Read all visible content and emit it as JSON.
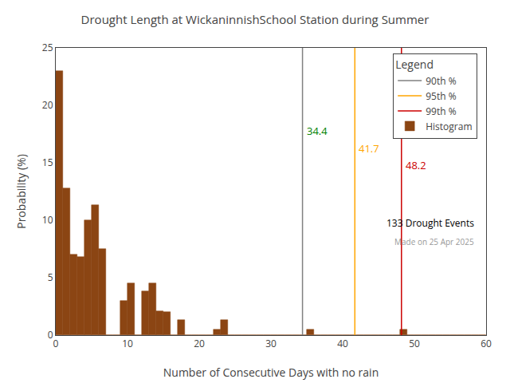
{
  "chart_data": {
    "type": "histogram",
    "title": "Drought Length at WickaninnishSchool Station during Summer",
    "xlabel": "Number of Consecutive Days with no rain",
    "ylabel": "Probability (%)",
    "series": [
      {
        "name": "Histogram",
        "type": "histogram",
        "color": "#8B4513",
        "bins": [
          0,
          1,
          2,
          3,
          4,
          5,
          6,
          7,
          8,
          9,
          10,
          11,
          12,
          13,
          14,
          15,
          16,
          17,
          18,
          19,
          20,
          21,
          22,
          23,
          24,
          25,
          26,
          27,
          28,
          29,
          30,
          31,
          32,
          33,
          34,
          35,
          36,
          37,
          38,
          39,
          40,
          41,
          42,
          43,
          44,
          45,
          46,
          47,
          48,
          49,
          50,
          51,
          52,
          53,
          54,
          55,
          56,
          57,
          58,
          59,
          60
        ],
        "values": [
          23.0,
          12.8,
          7.0,
          6.8,
          10.0,
          11.3,
          7.5,
          0.0,
          0.0,
          3.0,
          4.5,
          0.0,
          3.8,
          4.5,
          2.1,
          2.0,
          0.0,
          1.3,
          0.0,
          0.0,
          0.0,
          0.0,
          0.5,
          1.3,
          0.0,
          0.0,
          0.0,
          0.0,
          0.0,
          0.0,
          0.0,
          0.0,
          0.0,
          0.0,
          0.0,
          0.5,
          0.0,
          0.0,
          0.0,
          0.0,
          0.0,
          0.0,
          0.0,
          0.0,
          0.0,
          0.0,
          0.0,
          0.0,
          0.5,
          0.0,
          0.0,
          0.0,
          0.0,
          0.0,
          0.0,
          0.0,
          0.0,
          0.0,
          0.0,
          0.0
        ]
      },
      {
        "name": "90th %",
        "type": "vline",
        "x": [
          34.4
        ],
        "value_labels": [
          "34.4"
        ],
        "color": "#808080",
        "label_color": "#008000"
      },
      {
        "name": "95th %",
        "type": "vline",
        "x": [
          41.7
        ],
        "value_labels": [
          "41.7"
        ],
        "color": "#FFA500",
        "label_color": "#FFA500"
      },
      {
        "name": "99th %",
        "type": "vline",
        "x": [
          48.2
        ],
        "value_labels": [
          "48.2"
        ],
        "color": "#CC0000",
        "label_color": "#CC0000"
      }
    ],
    "legend_order": [
      "90th %",
      "95th %",
      "99th %",
      "Histogram"
    ],
    "legend_title": "Legend",
    "legend": "upper right",
    "annotations": [
      "133 Drought Events",
      "Made on 25 Apr 2025"
    ],
    "xlim": [
      0,
      60
    ],
    "ylim": [
      0,
      25
    ],
    "xticks": [
      0,
      10,
      20,
      30,
      40,
      50,
      60
    ],
    "yticks": [
      0,
      5,
      10,
      15,
      20,
      25
    ],
    "grid": false
  }
}
